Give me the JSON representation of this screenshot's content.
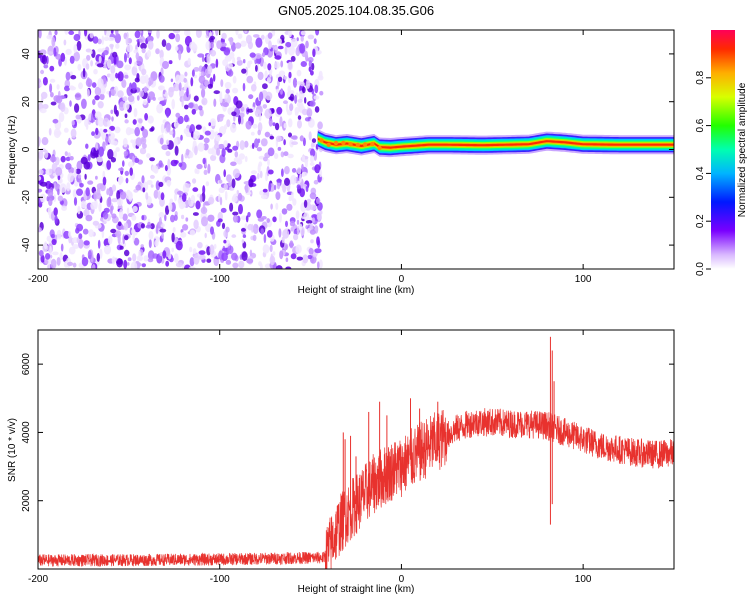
{
  "title": "GN05.2025.104.08.35.G06",
  "chart_data": [
    {
      "type": "heatmap",
      "xlabel": "Height of straight line (km)",
      "ylabel": "Frequency (Hz)",
      "xlim": [
        -200,
        150
      ],
      "ylim": [
        -50,
        50
      ],
      "xticks": [
        "-200",
        "-100",
        "0",
        "100"
      ],
      "xtick_values": [
        -200,
        -100,
        0,
        100
      ],
      "yticks": [
        "40",
        "20",
        "0",
        "-20",
        "-40"
      ],
      "ytick_values": [
        40,
        20,
        0,
        -20,
        -40
      ],
      "noise_region_x": [
        -200,
        -44
      ],
      "signal_trace": {
        "x_start": -46,
        "x_end": 150,
        "frequency_points": [
          [
            -46,
            4.5
          ],
          [
            -42,
            3
          ],
          [
            -36,
            2
          ],
          [
            -30,
            2.5
          ],
          [
            -22,
            1.5
          ],
          [
            -15,
            2.5
          ],
          [
            -12,
            1
          ],
          [
            -6,
            0.8
          ],
          [
            0,
            1.2
          ],
          [
            6,
            1.5
          ],
          [
            15,
            2
          ],
          [
            25,
            2
          ],
          [
            45,
            1.8
          ],
          [
            70,
            2.2
          ],
          [
            80,
            3.5
          ],
          [
            90,
            3
          ],
          [
            100,
            2.2
          ],
          [
            120,
            2
          ],
          [
            150,
            2
          ]
        ]
      },
      "colorbar": {
        "label": "Normalized spectral amplitude",
        "ticks": [
          "0.0",
          "0.2",
          "0.4",
          "0.6",
          "0.8"
        ],
        "tick_values": [
          0.0,
          0.2,
          0.4,
          0.6,
          0.8
        ],
        "range": [
          0,
          1
        ]
      }
    },
    {
      "type": "line",
      "xlabel": "Height of straight line (km)",
      "ylabel": "SNR (10 * v/v)",
      "xlim": [
        -200,
        150
      ],
      "ylim": [
        0,
        7000
      ],
      "xticks": [
        "-200",
        "-100",
        "0",
        "100"
      ],
      "xtick_values": [
        -200,
        -100,
        0,
        100
      ],
      "yticks": [
        "6000",
        "4000",
        "2000"
      ],
      "ytick_values": [
        6000,
        4000,
        2000
      ],
      "color": "#e8322e",
      "envelope": [
        [
          -200,
          250
        ],
        [
          -150,
          260
        ],
        [
          -100,
          280
        ],
        [
          -60,
          320
        ],
        [
          -42,
          330
        ],
        [
          -35,
          1200
        ],
        [
          -30,
          1600
        ],
        [
          -25,
          1900
        ],
        [
          -20,
          2200
        ],
        [
          -15,
          2500
        ],
        [
          -10,
          2700
        ],
        [
          -5,
          2900
        ],
        [
          0,
          3000
        ],
        [
          5,
          3200
        ],
        [
          10,
          3400
        ],
        [
          15,
          3600
        ],
        [
          20,
          3750
        ],
        [
          25,
          3900
        ],
        [
          30,
          4100
        ],
        [
          35,
          4200
        ],
        [
          40,
          4300
        ],
        [
          50,
          4300
        ],
        [
          60,
          4250
        ],
        [
          70,
          4250
        ],
        [
          80,
          4200
        ],
        [
          90,
          4000
        ],
        [
          100,
          3800
        ],
        [
          110,
          3600
        ],
        [
          120,
          3500
        ],
        [
          130,
          3400
        ],
        [
          140,
          3350
        ],
        [
          150,
          3400
        ]
      ],
      "spikes": [
        [
          -32,
          4000
        ],
        [
          -31,
          3800
        ],
        [
          -28,
          3900
        ],
        [
          -25,
          3300
        ],
        [
          -18,
          4600
        ],
        [
          -12,
          4900
        ],
        [
          -8,
          4500
        ],
        [
          5,
          5000
        ],
        [
          10,
          4700
        ],
        [
          20,
          4900
        ],
        [
          82,
          6800
        ],
        [
          83,
          6400
        ],
        [
          84,
          5500
        ],
        [
          82,
          1300
        ],
        [
          83,
          1900
        ]
      ]
    }
  ]
}
